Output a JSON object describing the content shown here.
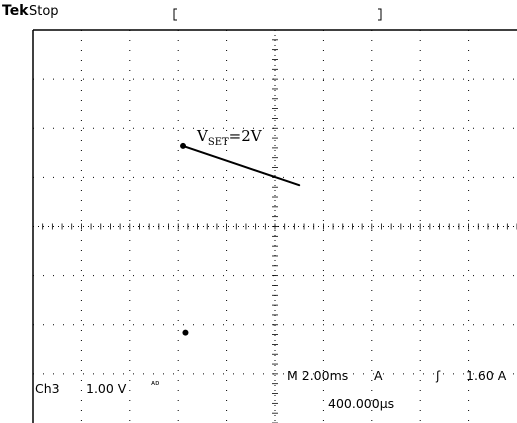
{
  "header": {
    "brand": "Tek",
    "acquisition_state": "Stop"
  },
  "annotation": {
    "label_main": "V",
    "label_sub": "SET",
    "label_rest": "=2V"
  },
  "readout": {
    "channel": "Ch3",
    "volts_per_div": "1.00 V",
    "coupling_marker": "ᴀᴅ",
    "timebase": "M 2.00ms",
    "trigger_source": "A",
    "trigger_slope_symbol": "ʃ",
    "trigger_level": "1.60 A",
    "trigger_position": "400.000µs"
  },
  "colors": {
    "trace": "#000000",
    "grid": "#000000",
    "background": "#ffffff"
  },
  "chart_data": {
    "type": "line",
    "title": "",
    "xlabel": "",
    "ylabel": "",
    "divisions": {
      "x": 10,
      "y": 8
    },
    "units": {
      "x": "ms",
      "y": "V"
    },
    "x_per_div": 2.0,
    "y_per_div": 1.0,
    "xlim": [
      0,
      20
    ],
    "ylim": [
      -4,
      4
    ],
    "grid": true,
    "series": [
      {
        "values": [
          {
            "x": 6.2,
            "y": 1.64
          },
          {
            "x": 8.6,
            "y": 1.24
          },
          {
            "x": 11.0,
            "y": 0.84
          }
        ]
      }
    ],
    "markers": [
      {
        "x": 6.2,
        "y": 1.64
      },
      {
        "x": 6.3,
        "y": -2.16
      }
    ]
  }
}
